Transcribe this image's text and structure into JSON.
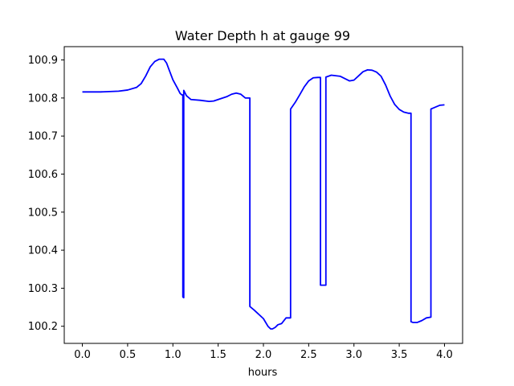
{
  "chart_data": {
    "type": "line",
    "title": "Water Depth h at gauge 99",
    "xlabel": "hours",
    "ylabel": "",
    "xlim": [
      -0.2,
      4.2
    ],
    "ylim": [
      100.155,
      100.935
    ],
    "grid": false,
    "xticks": [
      0.0,
      0.5,
      1.0,
      1.5,
      2.0,
      2.5,
      3.0,
      3.5,
      4.0
    ],
    "xtick_labels": [
      "0.0",
      "0.5",
      "1.0",
      "1.5",
      "2.0",
      "2.5",
      "3.0",
      "3.5",
      "4.0"
    ],
    "yticks": [
      100.2,
      100.3,
      100.4,
      100.5,
      100.6,
      100.7,
      100.8,
      100.9
    ],
    "ytick_labels": [
      "100.2",
      "100.3",
      "100.4",
      "100.5",
      "100.6",
      "100.7",
      "100.8",
      "100.9"
    ],
    "series": [
      {
        "color": "#0000ff",
        "x": [
          0.0,
          0.2,
          0.4,
          0.5,
          0.6,
          0.65,
          0.7,
          0.75,
          0.8,
          0.85,
          0.9,
          0.93,
          0.96,
          1.0,
          1.05,
          1.08,
          1.1,
          1.11,
          1.11,
          1.12,
          1.12,
          1.15,
          1.2,
          1.3,
          1.4,
          1.45,
          1.5,
          1.6,
          1.65,
          1.7,
          1.75,
          1.8,
          1.85,
          1.85,
          1.9,
          2.0,
          2.05,
          2.08,
          2.1,
          2.13,
          2.16,
          2.2,
          2.25,
          2.3,
          2.3,
          2.35,
          2.4,
          2.45,
          2.5,
          2.55,
          2.6,
          2.63,
          2.63,
          2.69,
          2.69,
          2.75,
          2.85,
          2.95,
          3.0,
          3.05,
          3.1,
          3.15,
          3.2,
          3.25,
          3.3,
          3.35,
          3.4,
          3.45,
          3.5,
          3.55,
          3.6,
          3.63,
          3.63,
          3.65,
          3.7,
          3.75,
          3.8,
          3.85,
          3.85,
          3.9,
          3.95,
          4.0
        ],
        "y": [
          100.816,
          100.816,
          100.818,
          100.821,
          100.828,
          100.838,
          100.858,
          100.882,
          100.896,
          100.902,
          100.902,
          100.892,
          100.873,
          100.848,
          100.826,
          100.812,
          100.808,
          100.808,
          100.277,
          100.275,
          100.82,
          100.806,
          100.796,
          100.794,
          100.791,
          100.792,
          100.796,
          100.804,
          100.81,
          100.813,
          100.81,
          100.8,
          100.8,
          100.252,
          100.242,
          100.22,
          100.2,
          100.193,
          100.193,
          100.197,
          100.204,
          100.207,
          100.222,
          100.222,
          100.771,
          100.788,
          100.808,
          100.829,
          100.845,
          100.853,
          100.854,
          100.854,
          100.308,
          100.308,
          100.855,
          100.86,
          100.857,
          100.845,
          100.847,
          100.858,
          100.869,
          100.874,
          100.873,
          100.868,
          100.857,
          100.834,
          100.805,
          100.783,
          100.77,
          100.763,
          100.76,
          100.76,
          100.212,
          100.21,
          100.21,
          100.215,
          100.222,
          100.224,
          100.771,
          100.776,
          100.781,
          100.782
        ]
      }
    ]
  }
}
